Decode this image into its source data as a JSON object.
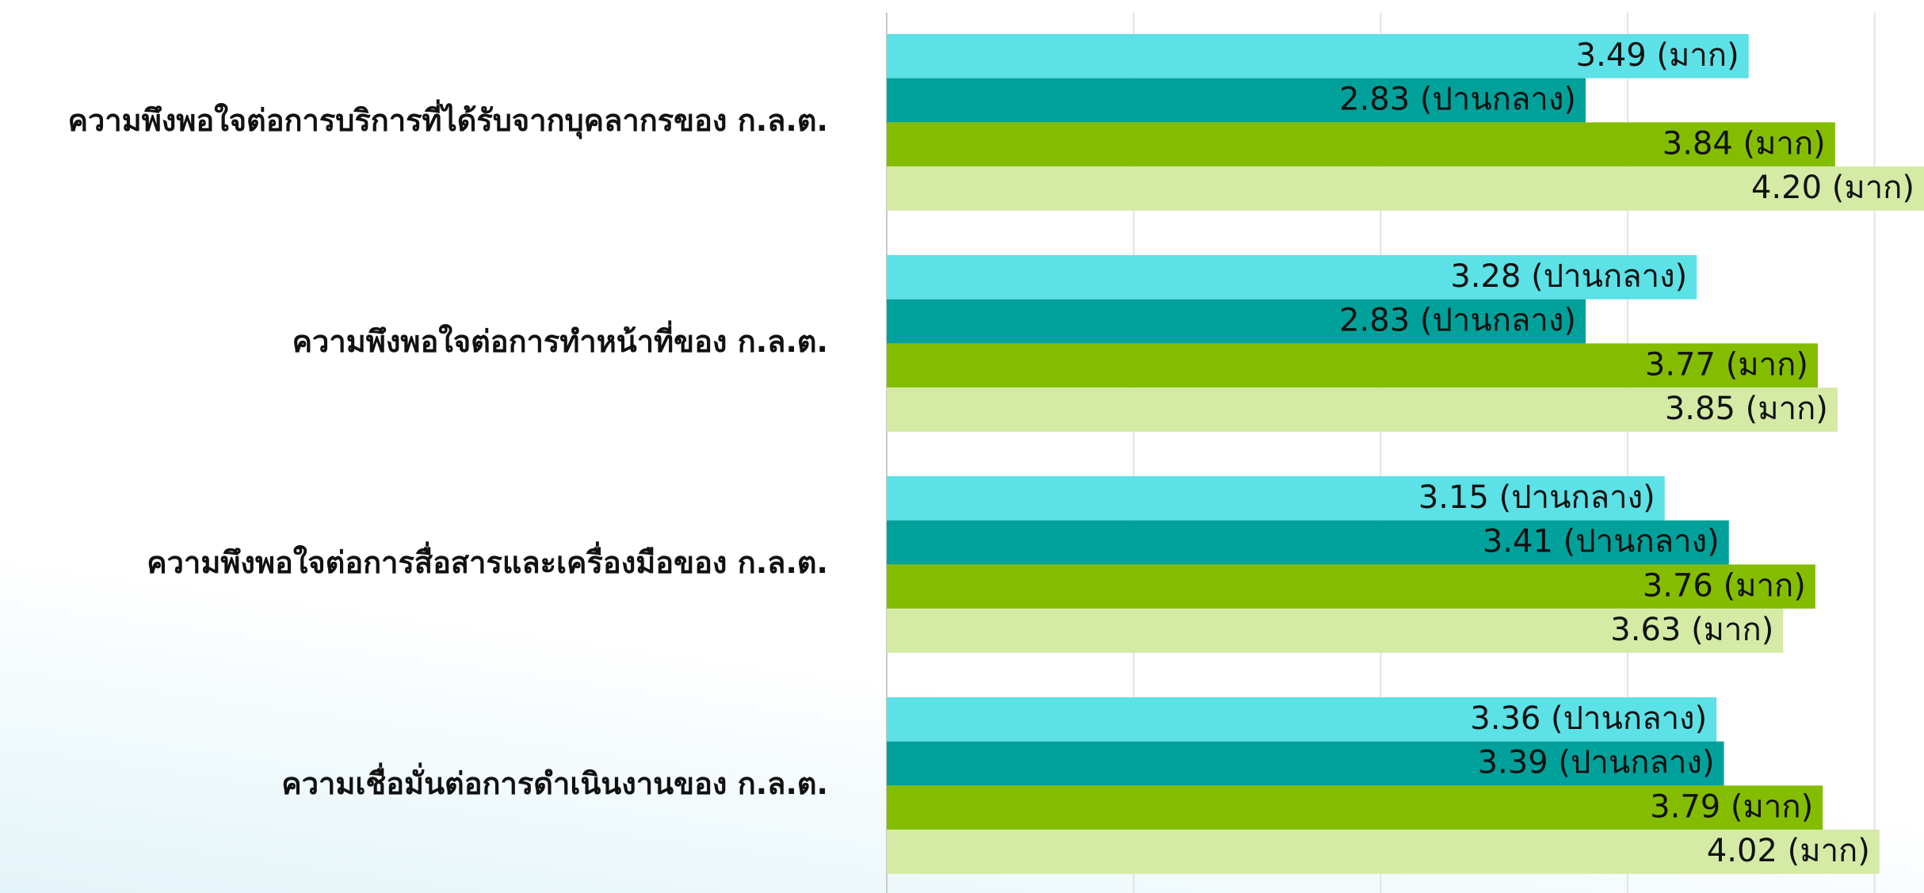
{
  "chart_data": {
    "type": "barh",
    "categories": [
      "ความพึงพอใจต่อการบริการที่ได้รับจากบุคลากรของ ก.ล.ต.",
      "ความพึงพอใจต่อการทำหน้าที่ของ ก.ล.ต.",
      "ความพึงพอใจต่อการสื่อสารและเครื่องมือของ ก.ล.ต.",
      "ความเชื่อมั่นต่อการดำเนินงานของ ก.ล.ต."
    ],
    "series": [
      {
        "color": "#5ce1e6",
        "values": [
          3.49,
          3.28,
          3.15,
          3.36
        ],
        "value_labels": [
          "3.49 (มาก)",
          "3.28 (ปานกลาง)",
          "3.15 (ปานกลาง)",
          "3.36 (ปานกลาง)"
        ]
      },
      {
        "color": "#00a19a",
        "values": [
          2.83,
          2.83,
          3.41,
          3.39
        ],
        "value_labels": [
          "2.83 (ปานกลาง)",
          "2.83 (ปานกลาง)",
          "3.41 (ปานกลาง)",
          "3.39 (ปานกลาง)"
        ]
      },
      {
        "color": "#84bd00",
        "values": [
          3.84,
          3.77,
          3.76,
          3.79
        ],
        "value_labels": [
          "3.84 (มาก)",
          "3.77 (มาก)",
          "3.76 (มาก)",
          "3.79 (มาก)"
        ]
      },
      {
        "color": "#d5eaa5",
        "values": [
          4.2,
          3.85,
          3.63,
          4.02
        ],
        "value_labels": [
          "4.20 (มาก)",
          "3.85 (มาก)",
          "3.63 (มาก)",
          "4.02 (มาก)"
        ]
      }
    ],
    "xlim": [
      0,
      4.2
    ],
    "xticks": [
      0,
      1,
      2,
      3,
      4
    ],
    "grid": true
  }
}
